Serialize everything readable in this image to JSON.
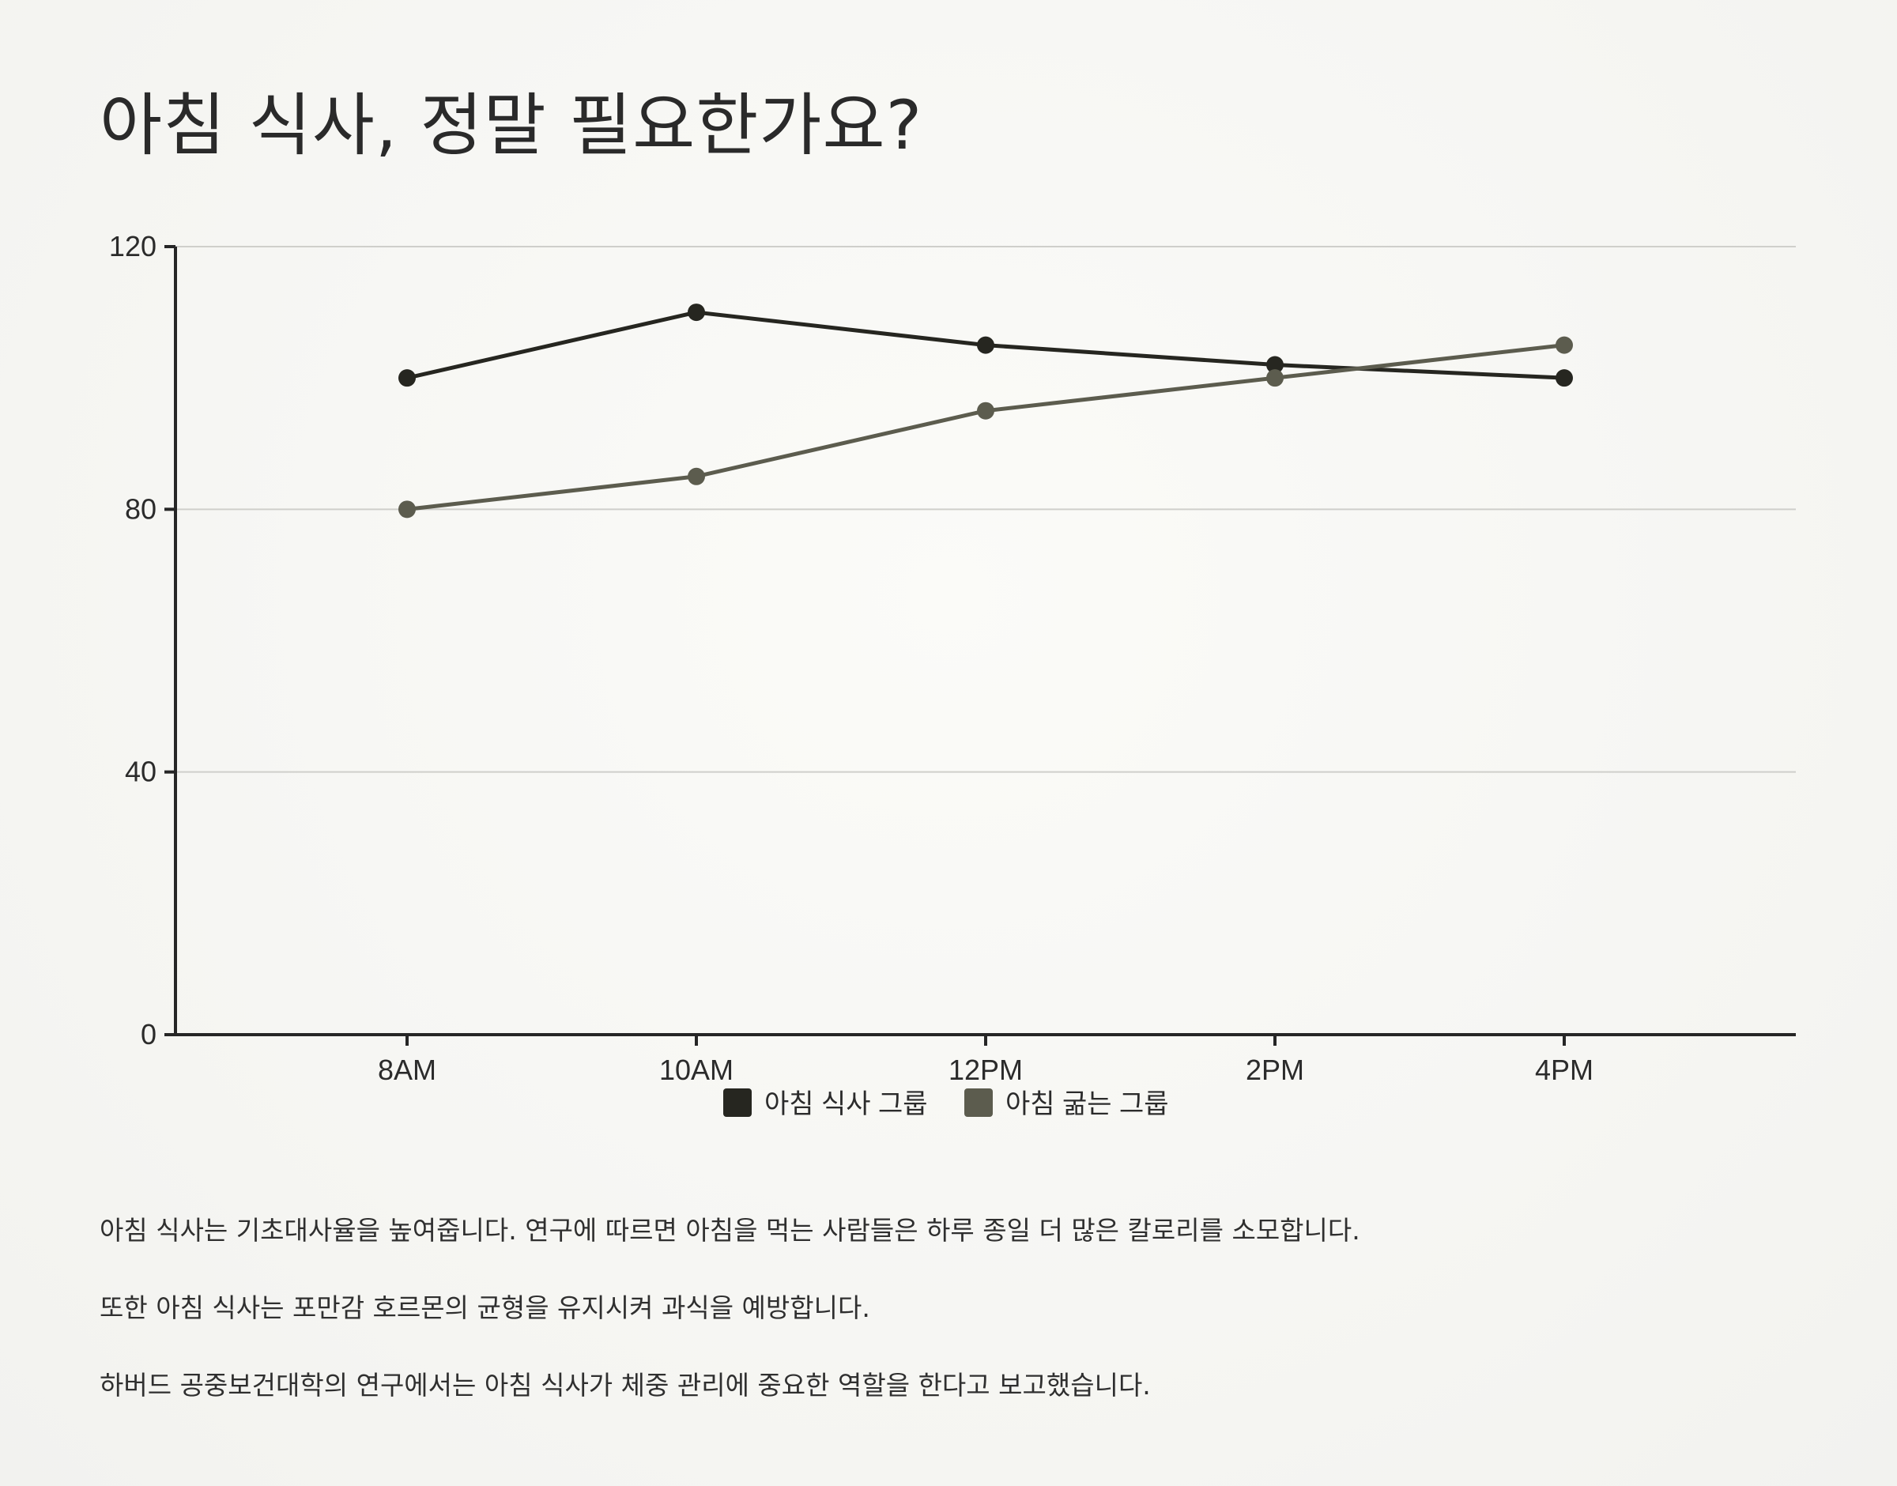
{
  "page": {
    "title": "아침 식사, 정말 필요한가요?",
    "paragraphs": [
      "아침 식사는 기초대사율을 높여줍니다. 연구에 따르면 아침을 먹는 사람들은 하루 종일 더 많은 칼로리를 소모합니다.",
      "또한 아침 식사는 포만감 호르몬의 균형을 유지시켜 과식을 예방합니다.",
      "하버드 공중보건대학의 연구에서는 아침 식사가 체중 관리에 중요한 역할을 한다고 보고했습니다."
    ]
  },
  "chart_data": {
    "type": "line",
    "title": "",
    "xlabel": "",
    "ylabel": "",
    "categories": [
      "8AM",
      "10AM",
      "12PM",
      "2PM",
      "4PM"
    ],
    "series": [
      {
        "name": "아침 식사 그룹",
        "values": [
          100,
          110,
          105,
          102,
          100
        ],
        "color": "#262620"
      },
      {
        "name": "아침 굶는 그룹",
        "values": [
          80,
          85,
          95,
          100,
          105
        ],
        "color": "#5c5c4e"
      }
    ],
    "ylim": [
      0,
      120
    ],
    "yticks": [
      0,
      40,
      80,
      120
    ],
    "grid": true,
    "legend": "bottom-center",
    "colors": {
      "axis": "#262626",
      "grid": "#cfcfcb",
      "text": "#2b2b2b"
    }
  }
}
